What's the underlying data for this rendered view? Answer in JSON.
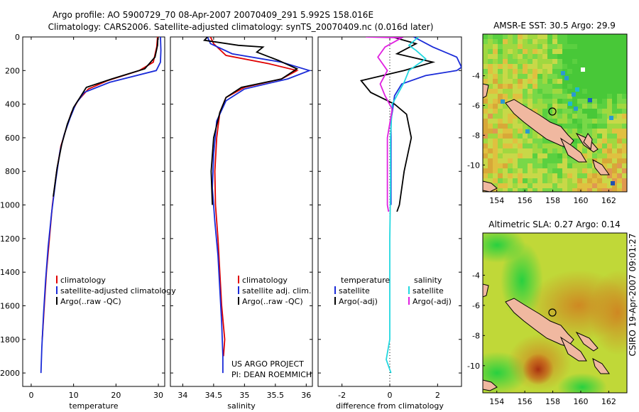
{
  "header": {
    "title_line1": "Argo profile: AO 5900729_70 08-Apr-2007 20070409_291 5.992S 158.016E",
    "title_line2": "Climatology: CARS2006. Satellite-adjusted climatology: synTS_20070409.nc (0.016d later)"
  },
  "side_label": "CSIRO 19-Apr-2007 09:01:27",
  "colors": {
    "climatology": "#e00000",
    "satellite": "#1a2bd8",
    "argo": "#000000",
    "salinity_satellite": "#22d8e0",
    "salinity_argo": "#e020e0"
  },
  "chart_data": [
    {
      "name": "temperature",
      "type": "line",
      "xlabel": "temperature",
      "xlim": [
        -2,
        31.5
      ],
      "ylim": [
        0,
        2080
      ],
      "xticks": [
        0,
        10,
        20,
        30
      ],
      "xtick_labels": [
        "0",
        "10",
        "20",
        "30"
      ],
      "yticks": [
        0,
        200,
        400,
        600,
        800,
        1000,
        1200,
        1400,
        1600,
        1800,
        2000
      ],
      "ytick_labels": [
        "0",
        "200",
        "400",
        "600",
        "800",
        "1000",
        "1200",
        "1400",
        "1600",
        "1800",
        "2000"
      ],
      "legend": [
        "climatology",
        "satellite-adjusted climatology",
        "Argo(..raw -QC)"
      ],
      "series": [
        {
          "name": "climatology",
          "color": "#e00000",
          "points": [
            [
              29.8,
              0
            ],
            [
              29.6,
              60
            ],
            [
              28.8,
              150
            ],
            [
              25.5,
              200
            ],
            [
              18.0,
              260
            ],
            [
              13.5,
              310
            ],
            [
              11.0,
              380
            ],
            [
              9.5,
              450
            ],
            [
              8.2,
              550
            ],
            [
              7.0,
              650
            ],
            [
              6.0,
              800
            ],
            [
              5.0,
              1000
            ],
            [
              4.3,
              1200
            ],
            [
              3.6,
              1400
            ],
            [
              3.1,
              1600
            ],
            [
              2.6,
              1800
            ]
          ]
        },
        {
          "name": "satellite-adjusted climatology",
          "color": "#1a2bd8",
          "points": [
            [
              30.5,
              0
            ],
            [
              30.6,
              80
            ],
            [
              30.5,
              150
            ],
            [
              29.5,
              200
            ],
            [
              18.5,
              270
            ],
            [
              12.5,
              330
            ],
            [
              10.5,
              400
            ],
            [
              9.2,
              480
            ],
            [
              7.8,
              580
            ],
            [
              6.8,
              680
            ],
            [
              5.8,
              850
            ],
            [
              4.8,
              1050
            ],
            [
              4.0,
              1250
            ],
            [
              3.4,
              1450
            ],
            [
              2.9,
              1650
            ],
            [
              2.5,
              1850
            ],
            [
              2.3,
              2000
            ]
          ]
        },
        {
          "name": "Argo(..raw -QC)",
          "color": "#000000",
          "points": [
            [
              29.9,
              5
            ],
            [
              29.8,
              50
            ],
            [
              29.2,
              120
            ],
            [
              26.8,
              190
            ],
            [
              19.0,
              250
            ],
            [
              13.0,
              300
            ],
            [
              11.5,
              360
            ],
            [
              10.0,
              420
            ],
            [
              8.5,
              520
            ],
            [
              7.2,
              640
            ],
            [
              6.1,
              780
            ],
            [
              5.2,
              950
            ]
          ]
        }
      ]
    },
    {
      "name": "salinity",
      "type": "line",
      "xlabel": "salinity",
      "xlim": [
        33.8,
        36.1
      ],
      "ylim": [
        0,
        2080
      ],
      "xticks": [
        34,
        34.5,
        35,
        35.5,
        36
      ],
      "xtick_labels": [
        "34",
        "34.5",
        "35",
        "35.5",
        "36"
      ],
      "legend": [
        "climatology",
        "satellite adj. clim.",
        "Argo(..raw -QC)"
      ],
      "annotation": [
        "US ARGO PROJECT",
        "PI: DEAN ROEMMICH"
      ],
      "series": [
        {
          "name": "climatology",
          "color": "#e00000",
          "points": [
            [
              34.45,
              0
            ],
            [
              34.5,
              40
            ],
            [
              34.7,
              110
            ],
            [
              35.4,
              160
            ],
            [
              35.85,
              200
            ],
            [
              35.6,
              250
            ],
            [
              35.0,
              300
            ],
            [
              34.7,
              360
            ],
            [
              34.6,
              450
            ],
            [
              34.55,
              600
            ],
            [
              34.52,
              800
            ],
            [
              34.53,
              1000
            ],
            [
              34.57,
              1200
            ],
            [
              34.6,
              1400
            ],
            [
              34.63,
              1600
            ],
            [
              34.68,
              1800
            ],
            [
              34.66,
              1900
            ]
          ]
        },
        {
          "name": "satellite adj. clim.",
          "color": "#1a2bd8",
          "points": [
            [
              34.4,
              0
            ],
            [
              34.45,
              40
            ],
            [
              34.8,
              100
            ],
            [
              35.6,
              150
            ],
            [
              36.05,
              200
            ],
            [
              35.7,
              250
            ],
            [
              35.0,
              310
            ],
            [
              34.7,
              380
            ],
            [
              34.55,
              500
            ],
            [
              34.5,
              700
            ],
            [
              34.48,
              900
            ],
            [
              34.52,
              1100
            ],
            [
              34.57,
              1300
            ],
            [
              34.6,
              1500
            ],
            [
              34.63,
              1700
            ],
            [
              34.65,
              1900
            ],
            [
              34.65,
              2000
            ]
          ]
        },
        {
          "name": "Argo(..raw -QC)",
          "color": "#000000",
          "points": [
            [
              34.4,
              0
            ],
            [
              34.35,
              20
            ],
            [
              34.9,
              50
            ],
            [
              35.3,
              60
            ],
            [
              35.2,
              90
            ],
            [
              35.55,
              140
            ],
            [
              35.85,
              190
            ],
            [
              35.6,
              250
            ],
            [
              34.95,
              300
            ],
            [
              34.7,
              360
            ],
            [
              34.6,
              450
            ],
            [
              34.5,
              600
            ],
            [
              34.46,
              800
            ],
            [
              34.48,
              1000
            ]
          ]
        }
      ]
    },
    {
      "name": "difference from climatology",
      "type": "line",
      "xlabel": "difference from climatology",
      "xlim": [
        -3.0,
        3.0
      ],
      "ylim": [
        0,
        2080
      ],
      "xticks": [
        -2,
        0,
        2
      ],
      "xtick_labels": [
        "-2",
        "0",
        "2"
      ],
      "legend_left_title": "temperature",
      "legend_right_title": "salinity",
      "legend_left": [
        "satellite",
        "Argo(-adj)"
      ],
      "legend_right": [
        "satellite",
        "Argo(-adj)"
      ],
      "series": [
        {
          "name": "temperature satellite",
          "color": "#1a2bd8",
          "points": [
            [
              1.0,
              0
            ],
            [
              1.8,
              60
            ],
            [
              2.8,
              120
            ],
            [
              3.0,
              180
            ],
            [
              2.8,
              200
            ],
            [
              1.5,
              230
            ],
            [
              0.5,
              280
            ],
            [
              0.2,
              350
            ],
            [
              0.05,
              500
            ],
            [
              0.05,
              1000
            ]
          ]
        },
        {
          "name": "temperature Argo(-adj)",
          "color": "#000000",
          "points": [
            [
              0.1,
              0
            ],
            [
              1.1,
              40
            ],
            [
              0.3,
              100
            ],
            [
              1.8,
              150
            ],
            [
              0.6,
              200
            ],
            [
              -1.2,
              260
            ],
            [
              -0.8,
              330
            ],
            [
              0.2,
              400
            ],
            [
              0.7,
              460
            ],
            [
              0.9,
              600
            ],
            [
              0.6,
              800
            ],
            [
              0.4,
              1000
            ],
            [
              0.3,
              1040
            ]
          ]
        },
        {
          "name": "salinity satellite",
          "color": "#22d8e0",
          "points": [
            [
              1.2,
              0
            ],
            [
              0.8,
              50
            ],
            [
              1.1,
              80
            ],
            [
              1.5,
              130
            ],
            [
              0.8,
              200
            ],
            [
              0.6,
              270
            ],
            [
              0.1,
              400
            ],
            [
              0.03,
              600
            ],
            [
              0.03,
              900
            ],
            [
              0.0,
              1200
            ],
            [
              0.0,
              1500
            ],
            [
              0.0,
              1800
            ],
            [
              -0.15,
              1920
            ],
            [
              0.05,
              2000
            ]
          ]
        },
        {
          "name": "salinity Argo(-adj)",
          "color": "#e020e0",
          "points": [
            [
              -1.0,
              0
            ],
            [
              0.5,
              5
            ],
            [
              -0.2,
              60
            ],
            [
              -0.5,
              120
            ],
            [
              -0.1,
              200
            ],
            [
              -0.4,
              280
            ],
            [
              -0.2,
              350
            ],
            [
              0.1,
              430
            ],
            [
              -0.1,
              600
            ],
            [
              -0.1,
              800
            ],
            [
              -0.1,
              1000
            ],
            [
              -0.05,
              1040
            ]
          ]
        }
      ]
    },
    {
      "name": "AMSR-E SST",
      "type": "heatmap",
      "title": "AMSR-E SST: 30.5 Argo: 29.9",
      "xlim": [
        153,
        163.3
      ],
      "ylim": [
        -11.8,
        -1.2
      ],
      "xticks": [
        154,
        156,
        158,
        160,
        162
      ],
      "xtick_labels": [
        "154",
        "156",
        "158",
        "160",
        "162"
      ],
      "yticks": [
        -4,
        -6,
        -8,
        -10
      ],
      "ytick_labels": [
        "-4",
        "-6",
        "-8",
        "-10"
      ],
      "marker": [
        158.0,
        -6.0
      ]
    },
    {
      "name": "Altimetric SLA",
      "type": "heatmap",
      "title": "Altimetric SLA: 0.27 Argo: 0.14",
      "xlim": [
        153,
        163.3
      ],
      "ylim": [
        -11.8,
        -1.2
      ],
      "xticks": [
        154,
        156,
        158,
        160,
        162
      ],
      "xtick_labels": [
        "154",
        "156",
        "158",
        "160",
        "162"
      ],
      "yticks": [
        -4,
        -6,
        -8,
        -10
      ],
      "ytick_labels": [
        "-4",
        "-6",
        "-8",
        "-10"
      ],
      "marker": [
        158.0,
        -6.0
      ]
    }
  ]
}
